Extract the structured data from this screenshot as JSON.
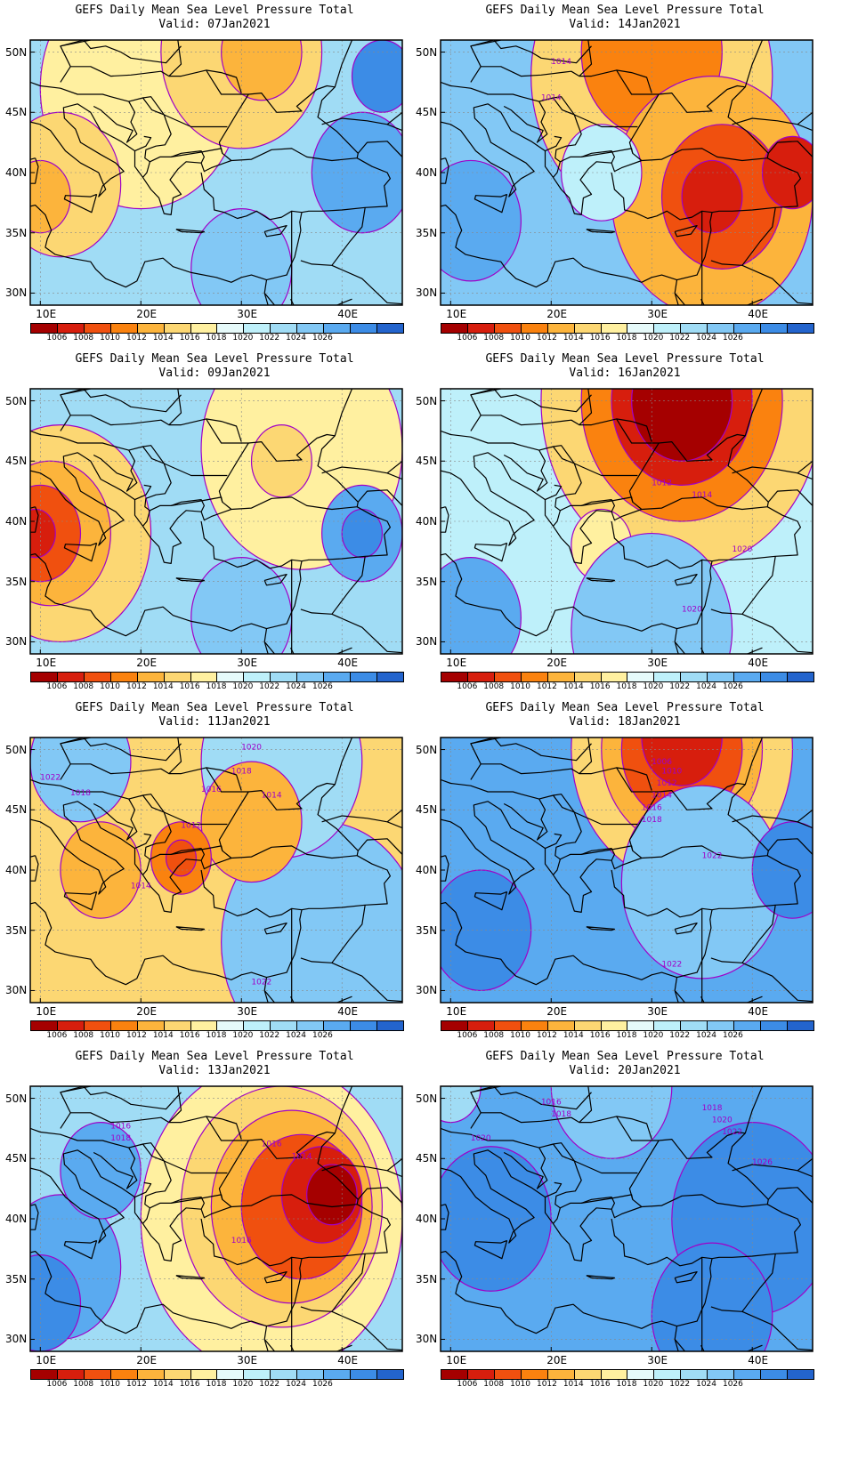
{
  "colorbar": {
    "colors": [
      "#a50000",
      "#d71e0d",
      "#f0500f",
      "#fa820f",
      "#fcb43c",
      "#fcd773",
      "#fff0a0",
      "#e6fafa",
      "#bef0fa",
      "#a0dcf5",
      "#82c8f5",
      "#5aaaf0",
      "#3c8ce6",
      "#2364cd"
    ],
    "labels": [
      "1006",
      "1008",
      "1010",
      "1012",
      "1014",
      "1016",
      "1018",
      "1020",
      "1022",
      "1024",
      "1026"
    ]
  },
  "contour_color": "#a000c8",
  "map_data": {
    "region": {
      "lon_range": [
        9,
        46
      ],
      "lat_range": [
        29,
        51
      ]
    },
    "lon_ticks": [
      "10E",
      "20E",
      "30E",
      "40E"
    ],
    "lat_ticks": [
      "50N",
      "45N",
      "40N",
      "35N",
      "30N"
    ],
    "panels": [
      {
        "title": "GEFS Daily Mean Sea Level Pressure Total",
        "valid": "Valid: 07Jan2021",
        "bg": "#a0dcf5",
        "fields": [
          {
            "lon": 20,
            "lat": 47,
            "r": 10,
            "color": "#fff0a0"
          },
          {
            "lon": 30,
            "lat": 50,
            "r": 8,
            "color": "#fcd773"
          },
          {
            "lon": 12,
            "lat": 39,
            "r": 6,
            "color": "#fcd773"
          },
          {
            "lon": 10,
            "lat": 38,
            "r": 3,
            "color": "#fcb43c"
          },
          {
            "lon": 32,
            "lat": 50,
            "r": 4,
            "color": "#fcb43c"
          },
          {
            "lon": 42,
            "lat": 40,
            "r": 5,
            "color": "#5aaaf0"
          },
          {
            "lon": 44,
            "lat": 48,
            "r": 3,
            "color": "#3c8ce6"
          },
          {
            "lon": 30,
            "lat": 32,
            "r": 5,
            "color": "#82c8f5"
          }
        ],
        "labels": []
      },
      {
        "title": "GEFS Daily Mean Sea Level Pressure Total",
        "valid": "Valid: 14Jan2021",
        "bg": "#82c8f5",
        "fields": [
          {
            "lon": 30,
            "lat": 48,
            "r": 12,
            "color": "#fcd773"
          },
          {
            "lon": 30,
            "lat": 50,
            "r": 7,
            "color": "#fa820f"
          },
          {
            "lon": 36,
            "lat": 38,
            "r": 10,
            "color": "#fcb43c"
          },
          {
            "lon": 37,
            "lat": 38,
            "r": 6,
            "color": "#f0500f"
          },
          {
            "lon": 36,
            "lat": 38,
            "r": 3,
            "color": "#d71e0d"
          },
          {
            "lon": 44,
            "lat": 40,
            "r": 3,
            "color": "#d71e0d"
          },
          {
            "lon": 12,
            "lat": 36,
            "r": 5,
            "color": "#5aaaf0"
          },
          {
            "lon": 25,
            "lat": 40,
            "r": 4,
            "color": "#bef0fa"
          }
        ],
        "labels": [
          {
            "lon": 21,
            "lat": 49,
            "text": "1014"
          },
          {
            "lon": 20,
            "lat": 46,
            "text": "1014"
          }
        ]
      },
      {
        "title": "GEFS Daily Mean Sea Level Pressure Total",
        "valid": "Valid: 09Jan2021",
        "bg": "#a0dcf5",
        "fields": [
          {
            "lon": 36,
            "lat": 46,
            "r": 10,
            "color": "#fff0a0"
          },
          {
            "lon": 34,
            "lat": 45,
            "r": 3,
            "color": "#fcd773"
          },
          {
            "lon": 12,
            "lat": 39,
            "r": 9,
            "color": "#fcd773"
          },
          {
            "lon": 11,
            "lat": 39,
            "r": 6,
            "color": "#fcb43c"
          },
          {
            "lon": 10,
            "lat": 39,
            "r": 4,
            "color": "#f0500f"
          },
          {
            "lon": 9.5,
            "lat": 39,
            "r": 2,
            "color": "#d71e0d"
          },
          {
            "lon": 42,
            "lat": 39,
            "r": 4,
            "color": "#5aaaf0"
          },
          {
            "lon": 42,
            "lat": 39,
            "r": 2,
            "color": "#3c8ce6"
          },
          {
            "lon": 30,
            "lat": 32,
            "r": 5,
            "color": "#82c8f5"
          }
        ],
        "labels": []
      },
      {
        "title": "GEFS Daily Mean Sea Level Pressure Total",
        "valid": "Valid: 16Jan2021",
        "bg": "#bef0fa",
        "fields": [
          {
            "lon": 33,
            "lat": 50,
            "r": 14,
            "color": "#fcd773"
          },
          {
            "lon": 33,
            "lat": 50,
            "r": 10,
            "color": "#fa820f"
          },
          {
            "lon": 33,
            "lat": 50,
            "r": 7,
            "color": "#d71e0d"
          },
          {
            "lon": 33,
            "lat": 50,
            "r": 5,
            "color": "#a50000"
          },
          {
            "lon": 25,
            "lat": 38,
            "r": 3,
            "color": "#fff0a0"
          },
          {
            "lon": 30,
            "lat": 31,
            "r": 8,
            "color": "#82c8f5"
          },
          {
            "lon": 12,
            "lat": 32,
            "r": 5,
            "color": "#5aaaf0"
          }
        ],
        "labels": [
          {
            "lon": 31,
            "lat": 43,
            "text": "1012"
          },
          {
            "lon": 35,
            "lat": 42,
            "text": "1014"
          },
          {
            "lon": 39,
            "lat": 37.5,
            "text": "1020"
          },
          {
            "lon": 34,
            "lat": 32.5,
            "text": "1020"
          }
        ]
      },
      {
        "title": "GEFS Daily Mean Sea Level Pressure Total",
        "valid": "Valid: 11Jan2021",
        "bg": "#fcd773",
        "fields": [
          {
            "lon": 38,
            "lat": 34,
            "r": 10,
            "color": "#82c8f5"
          },
          {
            "lon": 34,
            "lat": 49,
            "r": 8,
            "color": "#a0dcf5"
          },
          {
            "lon": 14,
            "lat": 49,
            "r": 5,
            "color": "#82c8f5"
          },
          {
            "lon": 31,
            "lat": 44,
            "r": 5,
            "color": "#fcb43c"
          },
          {
            "lon": 24,
            "lat": 41,
            "r": 3,
            "color": "#fa820f"
          },
          {
            "lon": 24,
            "lat": 41,
            "r": 1.5,
            "color": "#f0500f"
          },
          {
            "lon": 16,
            "lat": 40,
            "r": 4,
            "color": "#fcb43c"
          }
        ],
        "labels": [
          {
            "lon": 31,
            "lat": 50,
            "text": "1020"
          },
          {
            "lon": 30,
            "lat": 48,
            "text": "1018"
          },
          {
            "lon": 27,
            "lat": 46.5,
            "text": "1016"
          },
          {
            "lon": 33,
            "lat": 46,
            "text": "1014"
          },
          {
            "lon": 25,
            "lat": 43.5,
            "text": "1012"
          },
          {
            "lon": 20,
            "lat": 38.5,
            "text": "1014"
          },
          {
            "lon": 32,
            "lat": 30.5,
            "text": "1022"
          },
          {
            "lon": 14,
            "lat": 46.2,
            "text": "1018"
          },
          {
            "lon": 11,
            "lat": 47.5,
            "text": "1022"
          }
        ]
      },
      {
        "title": "GEFS Daily Mean Sea Level Pressure Total",
        "valid": "Valid: 18Jan2021",
        "bg": "#5aaaf0",
        "fields": [
          {
            "lon": 33,
            "lat": 50,
            "r": 11,
            "color": "#fcd773"
          },
          {
            "lon": 33,
            "lat": 50,
            "r": 8,
            "color": "#fcb43c"
          },
          {
            "lon": 33,
            "lat": 50,
            "r": 6,
            "color": "#f0500f"
          },
          {
            "lon": 33,
            "lat": 51,
            "r": 4,
            "color": "#d71e0d"
          },
          {
            "lon": 35,
            "lat": 39,
            "r": 8,
            "color": "#82c8f5"
          },
          {
            "lon": 44,
            "lat": 40,
            "r": 4,
            "color": "#3c8ce6"
          },
          {
            "lon": 13,
            "lat": 35,
            "r": 5,
            "color": "#3c8ce6"
          }
        ],
        "labels": [
          {
            "lon": 31,
            "lat": 48.8,
            "text": "1006"
          },
          {
            "lon": 32,
            "lat": 48,
            "text": "1010"
          },
          {
            "lon": 31.5,
            "lat": 47,
            "text": "1012"
          },
          {
            "lon": 31,
            "lat": 46,
            "text": "1014"
          },
          {
            "lon": 30,
            "lat": 45,
            "text": "1016"
          },
          {
            "lon": 30,
            "lat": 44,
            "text": "1018"
          },
          {
            "lon": 36,
            "lat": 41,
            "text": "1022"
          },
          {
            "lon": 32,
            "lat": 32,
            "text": "1022"
          }
        ]
      },
      {
        "title": "GEFS Daily Mean Sea Level Pressure Total",
        "valid": "Valid: 13Jan2021",
        "bg": "#a0dcf5",
        "fields": [
          {
            "lon": 33,
            "lat": 40,
            "r": 13,
            "color": "#fff0a0"
          },
          {
            "lon": 34,
            "lat": 41,
            "r": 10,
            "color": "#fcd773"
          },
          {
            "lon": 35,
            "lat": 41,
            "r": 8,
            "color": "#fcb43c"
          },
          {
            "lon": 36,
            "lat": 41,
            "r": 6,
            "color": "#f0500f"
          },
          {
            "lon": 38,
            "lat": 42,
            "r": 4,
            "color": "#d71e0d"
          },
          {
            "lon": 39,
            "lat": 42,
            "r": 2.5,
            "color": "#a50000"
          },
          {
            "lon": 12,
            "lat": 36,
            "r": 6,
            "color": "#5aaaf0"
          },
          {
            "lon": 10,
            "lat": 33,
            "r": 4,
            "color": "#3c8ce6"
          },
          {
            "lon": 16,
            "lat": 44,
            "r": 4,
            "color": "#5aaaf0"
          }
        ],
        "labels": [
          {
            "lon": 18,
            "lat": 47.5,
            "text": "1016"
          },
          {
            "lon": 18,
            "lat": 46.5,
            "text": "1018"
          },
          {
            "lon": 33,
            "lat": 46,
            "text": "1016"
          },
          {
            "lon": 36,
            "lat": 45,
            "text": "1014"
          },
          {
            "lon": 30,
            "lat": 38,
            "text": "1016"
          }
        ]
      },
      {
        "title": "GEFS Daily Mean Sea Level Pressure Total",
        "valid": "Valid: 20Jan2021",
        "bg": "#5aaaf0",
        "fields": [
          {
            "lon": 26,
            "lat": 51,
            "r": 6,
            "color": "#82c8f5"
          },
          {
            "lon": 40,
            "lat": 40,
            "r": 8,
            "color": "#3c8ce6"
          },
          {
            "lon": 14,
            "lat": 40,
            "r": 6,
            "color": "#3c8ce6"
          },
          {
            "lon": 36,
            "lat": 32,
            "r": 6,
            "color": "#3c8ce6"
          },
          {
            "lon": 10,
            "lat": 51,
            "r": 3,
            "color": "#a0dcf5"
          }
        ],
        "labels": [
          {
            "lon": 20,
            "lat": 49.5,
            "text": "1016"
          },
          {
            "lon": 21,
            "lat": 48.5,
            "text": "1018"
          },
          {
            "lon": 13,
            "lat": 46.5,
            "text": "1020"
          },
          {
            "lon": 36,
            "lat": 49,
            "text": "1018"
          },
          {
            "lon": 37,
            "lat": 48,
            "text": "1020"
          },
          {
            "lon": 38,
            "lat": 47,
            "text": "1022"
          },
          {
            "lon": 41,
            "lat": 44.5,
            "text": "1026"
          }
        ]
      }
    ]
  }
}
